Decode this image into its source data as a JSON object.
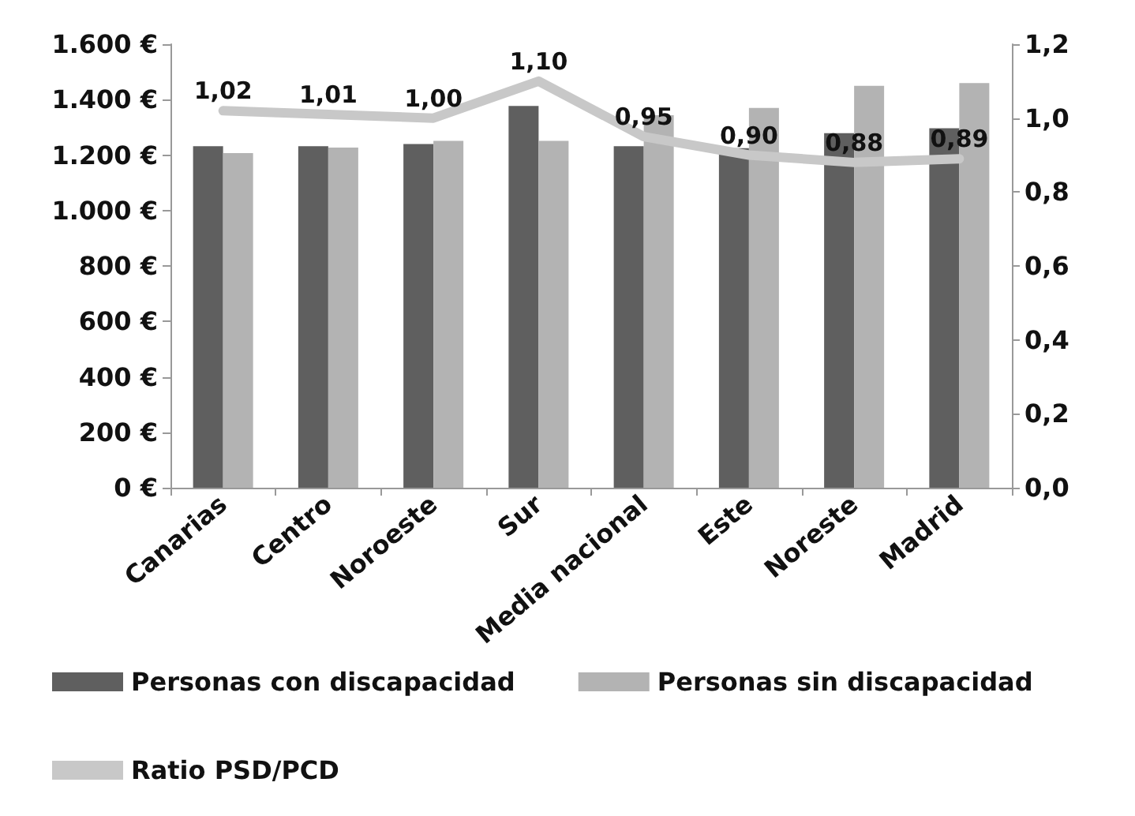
{
  "chart_data": {
    "type": "bar",
    "categories": [
      "Canarias",
      "Centro",
      "Noroeste",
      "Sur",
      "Media nacional",
      "Este",
      "Noreste",
      "Madrid"
    ],
    "series": [
      {
        "name": "Personas con discapacidad",
        "color": "#5f5f5f",
        "values": [
          1232,
          1232,
          1240,
          1377,
          1232,
          1225,
          1279,
          1297
        ]
      },
      {
        "name": "Personas sin discapacidad",
        "color": "#b3b3b3",
        "values": [
          1207,
          1227,
          1251,
          1251,
          1344,
          1370,
          1450,
          1460
        ]
      },
      {
        "name": "Ratio PSD/PCD",
        "type": "line",
        "axis": "y2",
        "color": "#c8c8c8",
        "values": [
          1.02,
          1.01,
          1.0,
          1.1,
          0.95,
          0.9,
          0.88,
          0.89
        ],
        "value_labels": [
          "1,02",
          "1,01",
          "1,00",
          "1,10",
          "0,95",
          "0,90",
          "0,88",
          "0,89"
        ]
      }
    ],
    "ylim": [
      0,
      1600
    ],
    "yticks": [
      {
        "value": 0,
        "label": "0 €"
      },
      {
        "value": 200,
        "label": "200 €"
      },
      {
        "value": 400,
        "label": "400 €"
      },
      {
        "value": 600,
        "label": "600 €"
      },
      {
        "value": 800,
        "label": "800 €"
      },
      {
        "value": 1000,
        "label": "1.000 €"
      },
      {
        "value": 1200,
        "label": "1.200 €"
      },
      {
        "value": 1400,
        "label": "1.400 €"
      },
      {
        "value": 1600,
        "label": "1.600 €"
      }
    ],
    "y2lim": [
      0,
      1.2
    ],
    "y2ticks": [
      {
        "value": 0,
        "label": "0,0"
      },
      {
        "value": 0.2,
        "label": "0,2"
      },
      {
        "value": 0.4,
        "label": "0,4"
      },
      {
        "value": 0.6,
        "label": "0,6"
      },
      {
        "value": 0.8,
        "label": "0,8"
      },
      {
        "value": 1.0,
        "label": "1,0"
      },
      {
        "value": 1.2,
        "label": "1,2"
      }
    ],
    "legend": "bottom left",
    "marker": "none"
  }
}
